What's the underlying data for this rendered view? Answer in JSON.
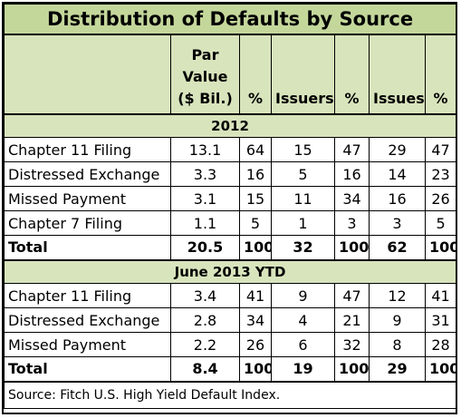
{
  "title": "Distribution of Defaults by Source",
  "columns": {
    "label": "",
    "par_value": "Par Value ($ Bil.)",
    "pct1": "%",
    "issuers": "Issuers",
    "pct2": "%",
    "issues": "Issues",
    "pct3": "%"
  },
  "sections": [
    {
      "heading": "2012",
      "rows": [
        {
          "label": "Chapter 11 Filing",
          "par": "13.1",
          "p1": "64",
          "issuers": "15",
          "p2": "47",
          "issues": "29",
          "p3": "47"
        },
        {
          "label": "Distressed Exchange",
          "par": "3.3",
          "p1": "16",
          "issuers": "5",
          "p2": "16",
          "issues": "14",
          "p3": "23"
        },
        {
          "label": "Missed Payment",
          "par": "3.1",
          "p1": "15",
          "issuers": "11",
          "p2": "34",
          "issues": "16",
          "p3": "26"
        },
        {
          "label": "Chapter 7 Filing",
          "par": "1.1",
          "p1": "5",
          "issuers": "1",
          "p2": "3",
          "issues": "3",
          "p3": "5"
        }
      ],
      "total": {
        "label": "Total",
        "par": "20.5",
        "p1": "100",
        "issuers": "32",
        "p2": "100",
        "issues": "62",
        "p3": "100"
      }
    },
    {
      "heading": "June 2013 YTD",
      "rows": [
        {
          "label": "Chapter 11 Filing",
          "par": "3.4",
          "p1": "41",
          "issuers": "9",
          "p2": "47",
          "issues": "12",
          "p3": "41"
        },
        {
          "label": "Distressed Exchange",
          "par": "2.8",
          "p1": "34",
          "issuers": "4",
          "p2": "21",
          "issues": "9",
          "p3": "31"
        },
        {
          "label": "Missed Payment",
          "par": "2.2",
          "p1": "26",
          "issuers": "6",
          "p2": "32",
          "issues": "8",
          "p3": "28"
        }
      ],
      "total": {
        "label": "Total",
        "par": "8.4",
        "p1": "100",
        "issuers": "19",
        "p2": "100",
        "issues": "29",
        "p3": "100"
      }
    }
  ],
  "source": "Source: Fitch U.S. High Yield Default Index.",
  "colors": {
    "title_bg": "#c4d79b",
    "header_bg": "#d8e4bc",
    "border": "#000000"
  }
}
